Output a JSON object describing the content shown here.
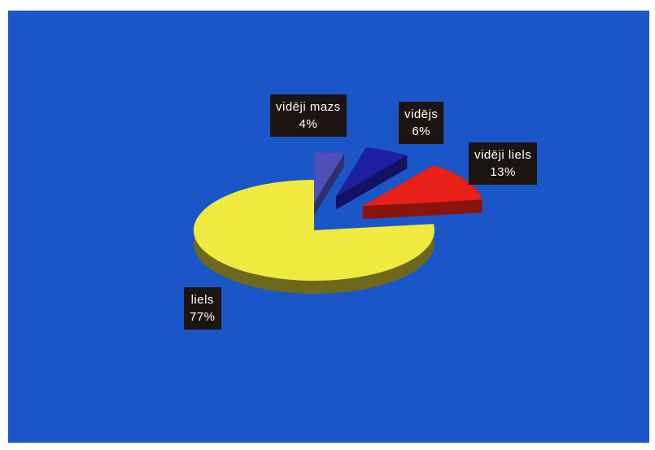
{
  "colors": {
    "background": "#1a56c8",
    "label_box": "#1c1410",
    "label_text": "#ffffff"
  },
  "chart_data": {
    "type": "pie",
    "style": "3d-exploded",
    "categories": [
      "liels",
      "vidēji mazs",
      "vidēji liels",
      "vidējs"
    ],
    "values": [
      77,
      4,
      13,
      6
    ],
    "labels": {
      "liels": {
        "name": "liels",
        "percent": "77%"
      },
      "videji_mazs": {
        "name": "vidēji mazs",
        "percent": "4%"
      },
      "videjs": {
        "name": "vidējs",
        "percent": "6%"
      },
      "videji_liels": {
        "name": "vidēji liels",
        "percent": "13%"
      }
    },
    "colors": [
      "#f0ea40",
      "#4f4fb8",
      "#e82018",
      "#1e1ea0"
    ],
    "legend": "none",
    "grid": false
  }
}
